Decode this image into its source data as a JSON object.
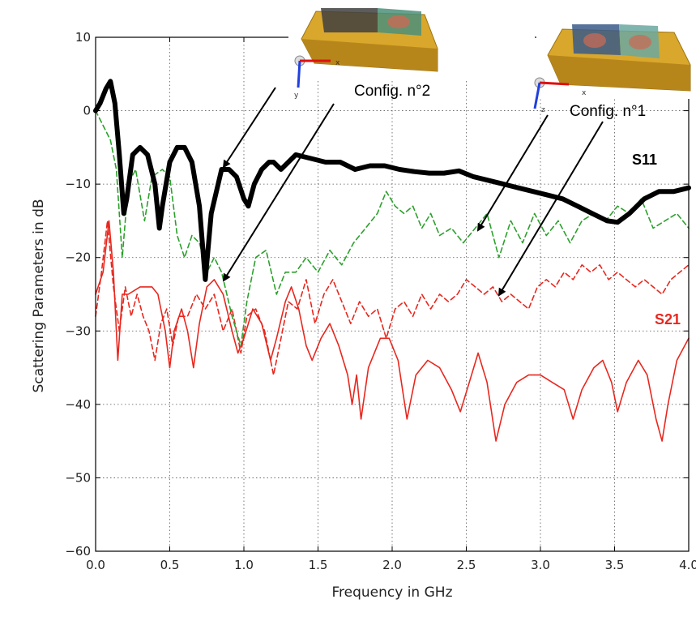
{
  "chart_data": {
    "type": "line",
    "title": "",
    "xlabel": "Frequency in GHz",
    "ylabel": "Scattering Parameters in dB",
    "xlim": [
      0.0,
      4.0
    ],
    "ylim": [
      -60,
      10
    ],
    "x_ticks": [
      0.0,
      0.5,
      1.0,
      1.5,
      2.0,
      2.5,
      3.0,
      3.5,
      4.0
    ],
    "x_tick_labels": [
      "0.0",
      "0.5",
      "1.0",
      "1.5",
      "2.0",
      "2.5",
      "3.0",
      "3.5",
      "4.0"
    ],
    "y_ticks": [
      10,
      0,
      -10,
      -20,
      -30,
      -40,
      -50,
      -60
    ],
    "y_tick_labels": [
      "10",
      "0",
      "−10",
      "−20",
      "−30",
      "−40",
      "−50",
      "−60"
    ],
    "grid": true,
    "series": [
      {
        "name": "S11",
        "config": "Config. n°2",
        "color": "#000000",
        "style": "solid-thick",
        "points": [
          [
            0.0,
            0
          ],
          [
            0.03,
            1
          ],
          [
            0.07,
            3
          ],
          [
            0.1,
            4
          ],
          [
            0.13,
            1
          ],
          [
            0.16,
            -6
          ],
          [
            0.19,
            -14
          ],
          [
            0.21,
            -12
          ],
          [
            0.25,
            -6
          ],
          [
            0.3,
            -5
          ],
          [
            0.35,
            -6
          ],
          [
            0.4,
            -10
          ],
          [
            0.43,
            -16
          ],
          [
            0.45,
            -13
          ],
          [
            0.5,
            -7
          ],
          [
            0.55,
            -5
          ],
          [
            0.6,
            -5
          ],
          [
            0.65,
            -7
          ],
          [
            0.7,
            -13
          ],
          [
            0.74,
            -23
          ],
          [
            0.78,
            -14
          ],
          [
            0.85,
            -8
          ],
          [
            0.9,
            -8
          ],
          [
            0.95,
            -9
          ],
          [
            1.0,
            -12
          ],
          [
            1.03,
            -13
          ],
          [
            1.07,
            -10
          ],
          [
            1.12,
            -8
          ],
          [
            1.17,
            -7
          ],
          [
            1.2,
            -7
          ],
          [
            1.25,
            -8
          ],
          [
            1.3,
            -7
          ],
          [
            1.35,
            -6
          ],
          [
            1.45,
            -6.5
          ],
          [
            1.55,
            -7
          ],
          [
            1.65,
            -7
          ],
          [
            1.75,
            -8
          ],
          [
            1.85,
            -7.5
          ],
          [
            1.95,
            -7.5
          ],
          [
            2.05,
            -8
          ],
          [
            2.15,
            -8.3
          ],
          [
            2.25,
            -8.5
          ],
          [
            2.35,
            -8.5
          ],
          [
            2.45,
            -8.2
          ],
          [
            2.55,
            -9
          ],
          [
            2.65,
            -9.5
          ],
          [
            2.75,
            -10
          ],
          [
            2.85,
            -10.5
          ],
          [
            2.95,
            -11
          ],
          [
            3.05,
            -11.5
          ],
          [
            3.15,
            -12
          ],
          [
            3.25,
            -13
          ],
          [
            3.35,
            -14
          ],
          [
            3.45,
            -15
          ],
          [
            3.52,
            -15.2
          ],
          [
            3.6,
            -14
          ],
          [
            3.7,
            -12
          ],
          [
            3.8,
            -11
          ],
          [
            3.9,
            -11
          ],
          [
            4.0,
            -10.5
          ]
        ]
      },
      {
        "name": "",
        "config": "Config. n°1",
        "color": "#2ca02c",
        "style": "dashed",
        "points": [
          [
            0.0,
            0
          ],
          [
            0.05,
            -2
          ],
          [
            0.1,
            -4
          ],
          [
            0.14,
            -8
          ],
          [
            0.18,
            -20
          ],
          [
            0.22,
            -10
          ],
          [
            0.27,
            -8
          ],
          [
            0.33,
            -15
          ],
          [
            0.38,
            -9
          ],
          [
            0.45,
            -8
          ],
          [
            0.5,
            -9
          ],
          [
            0.55,
            -17
          ],
          [
            0.6,
            -20
          ],
          [
            0.65,
            -17
          ],
          [
            0.7,
            -18
          ],
          [
            0.75,
            -22
          ],
          [
            0.8,
            -20
          ],
          [
            0.85,
            -22
          ],
          [
            0.92,
            -28
          ],
          [
            0.98,
            -32
          ],
          [
            1.02,
            -26
          ],
          [
            1.08,
            -20
          ],
          [
            1.15,
            -19
          ],
          [
            1.22,
            -25
          ],
          [
            1.28,
            -22
          ],
          [
            1.35,
            -22
          ],
          [
            1.42,
            -20
          ],
          [
            1.5,
            -22
          ],
          [
            1.58,
            -19
          ],
          [
            1.66,
            -21
          ],
          [
            1.74,
            -18
          ],
          [
            1.82,
            -16
          ],
          [
            1.9,
            -14
          ],
          [
            1.96,
            -11
          ],
          [
            2.02,
            -13
          ],
          [
            2.08,
            -14
          ],
          [
            2.14,
            -13
          ],
          [
            2.2,
            -16
          ],
          [
            2.26,
            -14
          ],
          [
            2.32,
            -17
          ],
          [
            2.4,
            -16
          ],
          [
            2.48,
            -18
          ],
          [
            2.56,
            -16
          ],
          [
            2.64,
            -14
          ],
          [
            2.72,
            -20
          ],
          [
            2.8,
            -15
          ],
          [
            2.88,
            -18
          ],
          [
            2.96,
            -14
          ],
          [
            3.04,
            -17
          ],
          [
            3.12,
            -15
          ],
          [
            3.2,
            -18
          ],
          [
            3.28,
            -15
          ],
          [
            3.36,
            -14
          ],
          [
            3.44,
            -15
          ],
          [
            3.52,
            -13
          ],
          [
            3.6,
            -14
          ],
          [
            3.68,
            -12
          ],
          [
            3.76,
            -16
          ],
          [
            3.84,
            -15
          ],
          [
            3.92,
            -14
          ],
          [
            4.0,
            -16
          ]
        ]
      },
      {
        "name": "S21",
        "config": "Config. n°2",
        "color": "#e8271e",
        "style": "solid-thin",
        "points": [
          [
            0.0,
            -25
          ],
          [
            0.05,
            -22
          ],
          [
            0.09,
            -15
          ],
          [
            0.12,
            -22
          ],
          [
            0.15,
            -34
          ],
          [
            0.18,
            -25
          ],
          [
            0.22,
            -25
          ],
          [
            0.3,
            -24
          ],
          [
            0.38,
            -24
          ],
          [
            0.42,
            -25
          ],
          [
            0.47,
            -30
          ],
          [
            0.5,
            -35
          ],
          [
            0.53,
            -30
          ],
          [
            0.58,
            -27
          ],
          [
            0.62,
            -30
          ],
          [
            0.66,
            -35
          ],
          [
            0.7,
            -29
          ],
          [
            0.75,
            -24
          ],
          [
            0.8,
            -23
          ],
          [
            0.86,
            -25
          ],
          [
            0.92,
            -30
          ],
          [
            0.96,
            -33
          ],
          [
            1.0,
            -31
          ],
          [
            1.06,
            -27
          ],
          [
            1.12,
            -29
          ],
          [
            1.18,
            -34
          ],
          [
            1.22,
            -31
          ],
          [
            1.28,
            -26
          ],
          [
            1.32,
            -24
          ],
          [
            1.37,
            -27
          ],
          [
            1.42,
            -32
          ],
          [
            1.46,
            -34
          ],
          [
            1.52,
            -31
          ],
          [
            1.58,
            -29
          ],
          [
            1.64,
            -32
          ],
          [
            1.7,
            -36
          ],
          [
            1.73,
            -40
          ],
          [
            1.76,
            -36
          ],
          [
            1.79,
            -42
          ],
          [
            1.84,
            -35
          ],
          [
            1.92,
            -31
          ],
          [
            1.98,
            -31
          ],
          [
            2.04,
            -34
          ],
          [
            2.1,
            -42
          ],
          [
            2.16,
            -36
          ],
          [
            2.24,
            -34
          ],
          [
            2.32,
            -35
          ],
          [
            2.4,
            -38
          ],
          [
            2.46,
            -41
          ],
          [
            2.52,
            -37
          ],
          [
            2.58,
            -33
          ],
          [
            2.64,
            -37
          ],
          [
            2.7,
            -45
          ],
          [
            2.76,
            -40
          ],
          [
            2.84,
            -37
          ],
          [
            2.92,
            -36
          ],
          [
            3.0,
            -36
          ],
          [
            3.08,
            -37
          ],
          [
            3.16,
            -38
          ],
          [
            3.22,
            -42
          ],
          [
            3.28,
            -38
          ],
          [
            3.36,
            -35
          ],
          [
            3.42,
            -34
          ],
          [
            3.48,
            -37
          ],
          [
            3.52,
            -41
          ],
          [
            3.58,
            -37
          ],
          [
            3.66,
            -34
          ],
          [
            3.72,
            -36
          ],
          [
            3.78,
            -42
          ],
          [
            3.82,
            -45
          ],
          [
            3.86,
            -40
          ],
          [
            3.92,
            -34
          ],
          [
            4.0,
            -31
          ]
        ]
      },
      {
        "name": "",
        "config": "Config. n°1",
        "color": "#e8271e",
        "style": "dashed",
        "points": [
          [
            0.0,
            -28
          ],
          [
            0.04,
            -22
          ],
          [
            0.08,
            -15
          ],
          [
            0.12,
            -24
          ],
          [
            0.16,
            -30
          ],
          [
            0.2,
            -24
          ],
          [
            0.24,
            -28
          ],
          [
            0.28,
            -25
          ],
          [
            0.32,
            -28
          ],
          [
            0.36,
            -30
          ],
          [
            0.4,
            -34
          ],
          [
            0.44,
            -29
          ],
          [
            0.48,
            -27
          ],
          [
            0.52,
            -32
          ],
          [
            0.56,
            -28
          ],
          [
            0.62,
            -28
          ],
          [
            0.68,
            -25
          ],
          [
            0.74,
            -27
          ],
          [
            0.8,
            -25
          ],
          [
            0.86,
            -30
          ],
          [
            0.92,
            -27
          ],
          [
            0.98,
            -33
          ],
          [
            1.02,
            -28
          ],
          [
            1.08,
            -27
          ],
          [
            1.14,
            -30
          ],
          [
            1.2,
            -36
          ],
          [
            1.25,
            -31
          ],
          [
            1.3,
            -26
          ],
          [
            1.36,
            -27
          ],
          [
            1.42,
            -23
          ],
          [
            1.48,
            -29
          ],
          [
            1.54,
            -25
          ],
          [
            1.6,
            -23
          ],
          [
            1.66,
            -26
          ],
          [
            1.72,
            -29
          ],
          [
            1.78,
            -26
          ],
          [
            1.84,
            -28
          ],
          [
            1.9,
            -27
          ],
          [
            1.96,
            -31
          ],
          [
            2.02,
            -27
          ],
          [
            2.08,
            -26
          ],
          [
            2.14,
            -28
          ],
          [
            2.2,
            -25
          ],
          [
            2.26,
            -27
          ],
          [
            2.32,
            -25
          ],
          [
            2.38,
            -26
          ],
          [
            2.44,
            -25
          ],
          [
            2.5,
            -23
          ],
          [
            2.56,
            -24
          ],
          [
            2.62,
            -25
          ],
          [
            2.68,
            -24
          ],
          [
            2.74,
            -26
          ],
          [
            2.8,
            -25
          ],
          [
            2.86,
            -26
          ],
          [
            2.92,
            -27
          ],
          [
            2.98,
            -24
          ],
          [
            3.04,
            -23
          ],
          [
            3.1,
            -24
          ],
          [
            3.16,
            -22
          ],
          [
            3.22,
            -23
          ],
          [
            3.28,
            -21
          ],
          [
            3.34,
            -22
          ],
          [
            3.4,
            -21
          ],
          [
            3.46,
            -23
          ],
          [
            3.52,
            -22
          ],
          [
            3.58,
            -23
          ],
          [
            3.64,
            -24
          ],
          [
            3.7,
            -23
          ],
          [
            3.76,
            -24
          ],
          [
            3.82,
            -25
          ],
          [
            3.88,
            -23
          ],
          [
            3.94,
            -22
          ],
          [
            4.0,
            -21
          ]
        ]
      }
    ],
    "annotations": [
      {
        "text": "Config. n°2",
        "targets": "S11 solid and S21 solid traces near 0.85 GHz"
      },
      {
        "text": "Config. n°1",
        "targets": "dashed green and dashed red traces near 2.6 GHz"
      },
      {
        "text": "S11",
        "color": "#000000"
      },
      {
        "text": "S21",
        "color": "#e8271e"
      }
    ]
  }
}
